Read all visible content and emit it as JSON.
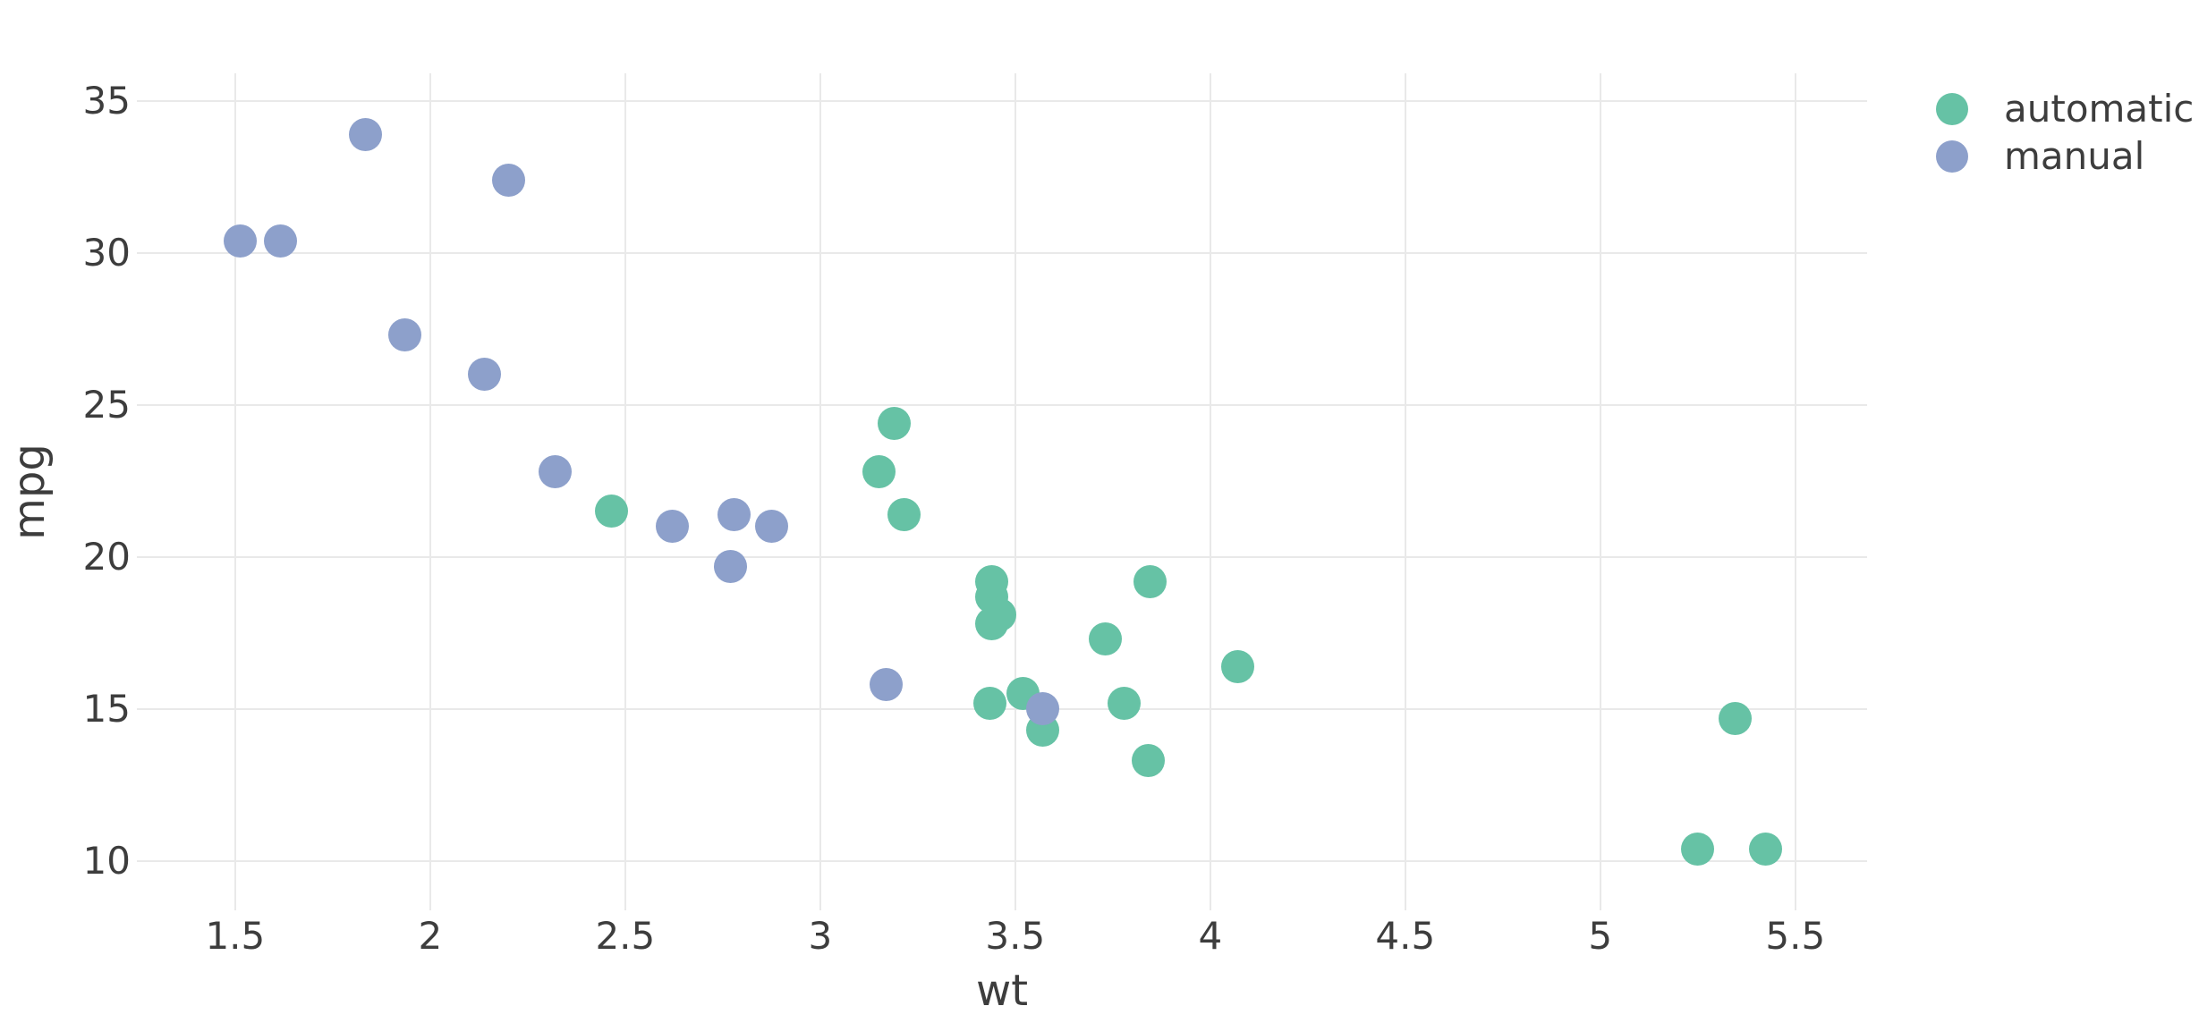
{
  "chart_data": {
    "type": "scatter",
    "title": "",
    "xlabel": "wt",
    "ylabel": "mpg",
    "x_ticks": [
      1.5,
      2,
      2.5,
      3,
      3.5,
      4,
      4.5,
      5,
      5.5
    ],
    "y_ticks": [
      10,
      15,
      20,
      25,
      30,
      35
    ],
    "x_range": [
      1.248,
      5.684
    ],
    "y_range": [
      8.38,
      35.91
    ],
    "grid": true,
    "background": "#ffffff",
    "gridline_color": "#e9e9e9",
    "text_color": "#3d3d3d",
    "marker_diameter_px": 37,
    "legend_position": "top-right-outside",
    "series": [
      {
        "name": "automatic",
        "color": "#66C2A5",
        "points": [
          [
            3.215,
            21.4
          ],
          [
            3.44,
            18.7
          ],
          [
            3.46,
            18.1
          ],
          [
            3.57,
            14.3
          ],
          [
            3.19,
            24.4
          ],
          [
            3.15,
            22.8
          ],
          [
            3.44,
            19.2
          ],
          [
            3.44,
            17.8
          ],
          [
            4.07,
            16.4
          ],
          [
            3.73,
            17.3
          ],
          [
            3.78,
            15.2
          ],
          [
            5.25,
            10.4
          ],
          [
            5.424,
            10.4
          ],
          [
            5.345,
            14.7
          ],
          [
            2.465,
            21.5
          ],
          [
            3.52,
            15.5
          ],
          [
            3.435,
            15.2
          ],
          [
            3.84,
            13.3
          ],
          [
            3.845,
            19.2
          ]
        ]
      },
      {
        "name": "manual",
        "color": "#8DA0CB",
        "points": [
          [
            2.62,
            21.0
          ],
          [
            2.875,
            21.0
          ],
          [
            2.32,
            22.8
          ],
          [
            2.2,
            32.4
          ],
          [
            1.615,
            30.4
          ],
          [
            1.835,
            33.9
          ],
          [
            1.935,
            27.3
          ],
          [
            2.14,
            26.0
          ],
          [
            1.513,
            30.4
          ],
          [
            3.17,
            15.8
          ],
          [
            2.77,
            19.7
          ],
          [
            3.57,
            15.0
          ],
          [
            2.78,
            21.4
          ]
        ]
      }
    ]
  }
}
